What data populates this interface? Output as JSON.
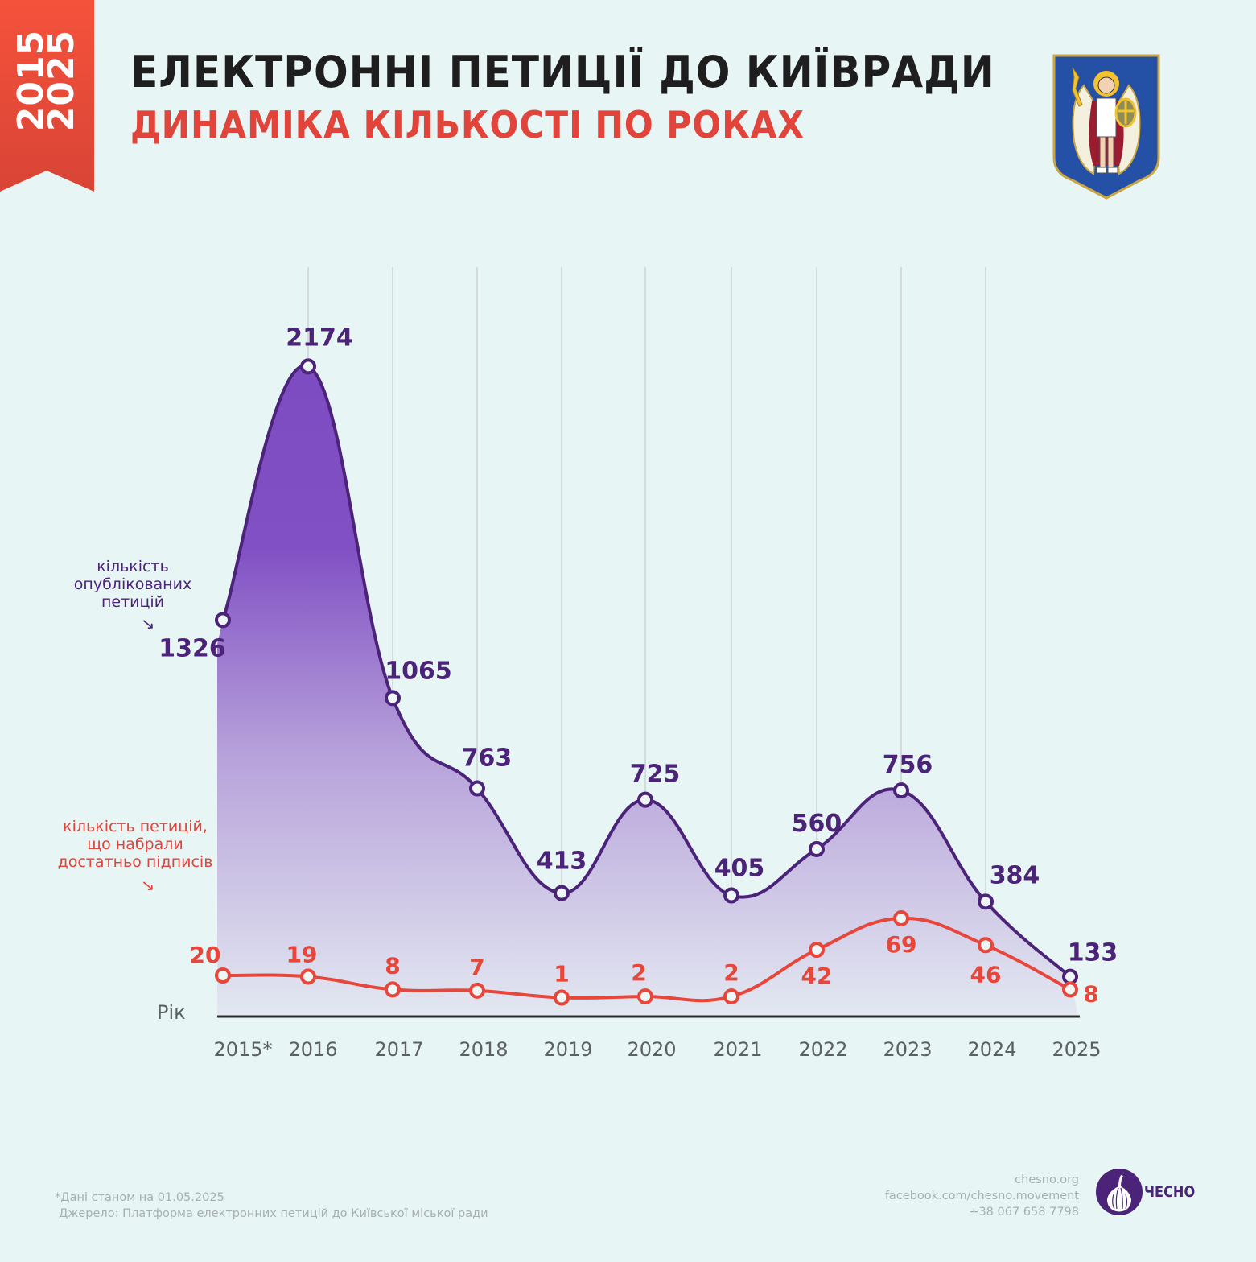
{
  "ribbon": {
    "line1": "2015",
    "line2": "2025"
  },
  "header": {
    "title": "ЕЛЕКТРОННІ ПЕТИЦІЇ ДО КИЇВРАДИ",
    "subtitle": "ДИНАМІКА КІЛЬКОСТІ ПО РОКАХ",
    "crest_icon": "kyiv-coat-of-arms-icon"
  },
  "legend": {
    "published": [
      "кількість",
      "опублікованих",
      "петицій"
    ],
    "successful": [
      "кількість петицій,",
      "що набрали",
      "достатньо підписів"
    ],
    "arrow": "→"
  },
  "chart_data": {
    "type": "area",
    "title": "ЕЛЕКТРОННІ ПЕТИЦІЇ ДО КИЇВРАДИ",
    "subtitle": "ДИНАМІКА КІЛЬКОСТІ ПО РОКАХ",
    "xlabel": "Рік",
    "ylabel": "",
    "categories": [
      "2015*",
      "2016",
      "2017",
      "2018",
      "2019",
      "2020",
      "2021",
      "2022",
      "2023",
      "2024",
      "2025"
    ],
    "series": [
      {
        "name": "кількість опублікованих петицій",
        "type": "area",
        "color": "#4b2378",
        "values": [
          1326,
          2174,
          1065,
          763,
          413,
          725,
          405,
          560,
          756,
          384,
          133
        ]
      },
      {
        "name": "кількість петицій, що набрали достатньо підписів",
        "type": "line",
        "color": "#e8463a",
        "values": [
          20,
          19,
          8,
          7,
          1,
          2,
          2,
          42,
          69,
          46,
          8
        ]
      }
    ],
    "grid": "vertical",
    "legend": "left"
  },
  "footer": {
    "note": "*Дані станом на 01.05.2025",
    "source": "Джерело: Платформа електронних петицій до Київської міської ради",
    "site": "chesno.org",
    "facebook": "facebook.com/chesno.movement",
    "phone": "+38 067 658 7798",
    "brand": "ЧЕСНО",
    "brand_icon": "garlic-icon"
  },
  "colors": {
    "background": "#e8f5f5",
    "ribbon": "#e84a3a",
    "purple": "#4b2378",
    "purple_fill": "#7e4cc2",
    "red": "#e8463a",
    "title": "#1e1e1e"
  }
}
